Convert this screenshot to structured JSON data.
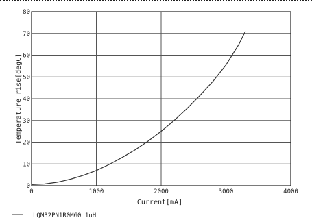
{
  "chart_data": {
    "type": "line",
    "xlabel": "Current[mA]",
    "ylabel": "Temperature rise[degC]",
    "xlim": [
      0,
      4000
    ],
    "ylim": [
      0,
      80
    ],
    "x_ticks": [
      "0",
      "1000",
      "2000",
      "3000",
      "4000"
    ],
    "y_ticks": [
      "0",
      "10",
      "20",
      "30",
      "40",
      "50",
      "60",
      "70",
      "80"
    ],
    "grid": true,
    "legend_position": "bottom-left",
    "series": [
      {
        "name": "LQM32PN1R0MG0 1uH",
        "color": "#333333",
        "x": [
          0,
          200,
          400,
          600,
          800,
          1000,
          1200,
          1400,
          1600,
          1800,
          2000,
          2200,
          2400,
          2600,
          2800,
          3000,
          3200,
          3300
        ],
        "y": [
          0.5,
          0.8,
          1.6,
          3.0,
          4.8,
          7.0,
          9.8,
          13.0,
          16.5,
          20.5,
          25.0,
          30.0,
          35.5,
          41.5,
          48.0,
          55.5,
          65.0,
          71.0
        ]
      }
    ]
  }
}
